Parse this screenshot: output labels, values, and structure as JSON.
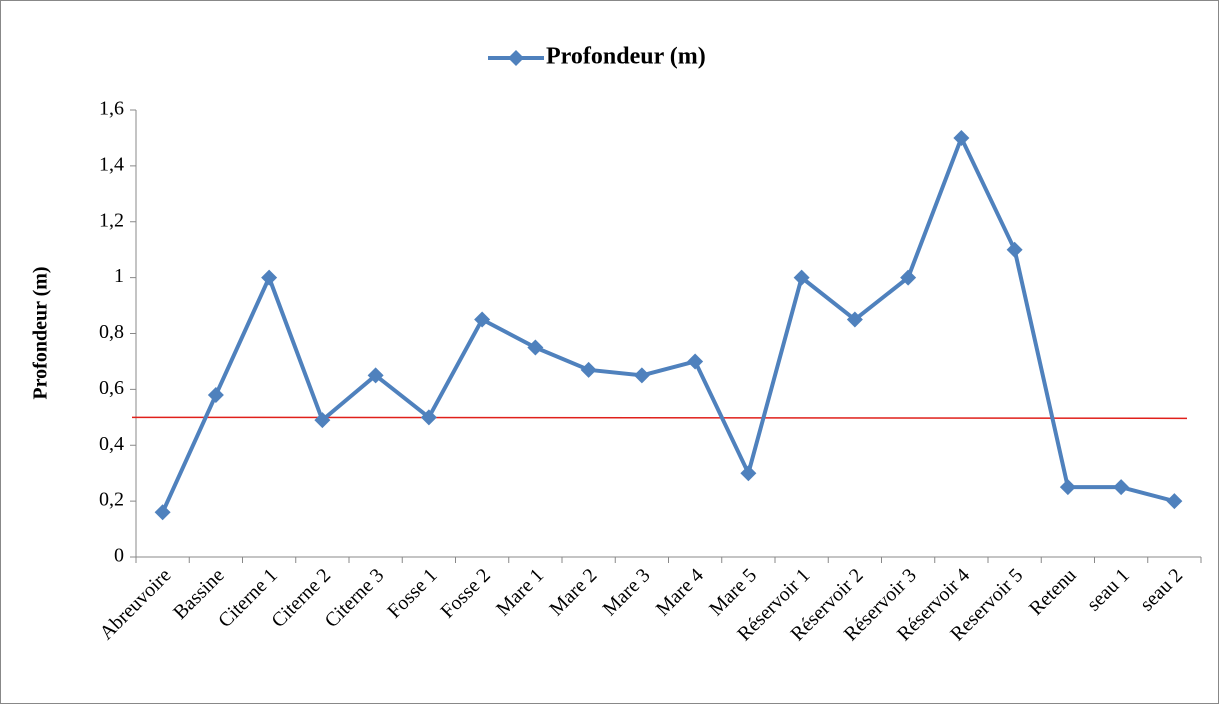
{
  "chart_data": {
    "type": "line",
    "y_axis_label": "Profondeur (m)",
    "categories": [
      "Abreuvoire",
      "Bassine",
      "Citerne 1",
      "Citerne 2",
      "Citerne 3",
      "Fosse 1",
      "Fosse 2",
      "Mare 1",
      "Mare 2",
      "Mare 3",
      "Mare 4",
      "Mare 5",
      "Réservoir 1",
      "Réservoir 2",
      "Réservoir 3",
      "Réservoir 4",
      "Reservoir 5",
      "Retenu",
      "seau 1",
      "seau 2"
    ],
    "series": [
      {
        "name": "Profondeur (m)",
        "color": "#4f81bd",
        "values": [
          0.16,
          0.58,
          1.0,
          0.49,
          0.65,
          0.5,
          0.85,
          0.75,
          0.67,
          0.65,
          0.7,
          0.3,
          1.0,
          0.85,
          1.0,
          1.5,
          1.1,
          0.25,
          0.25,
          0.2
        ]
      }
    ],
    "reference_line": {
      "value": 0.5,
      "color": "#e0201b"
    },
    "ylim": [
      0,
      1.6
    ],
    "yticks": [
      0,
      {
        "value": 0.2,
        "label": "0,2"
      },
      {
        "value": 0.4,
        "label": "0,4"
      },
      {
        "value": 0.6,
        "label": "0,6"
      },
      {
        "value": 0.8,
        "label": "0,8"
      },
      1,
      {
        "value": 1.2,
        "label": "1,2"
      },
      {
        "value": 1.4,
        "label": "1,4"
      },
      {
        "value": 1.6,
        "label": "1,6"
      }
    ],
    "legend": "top",
    "grid": false
  }
}
